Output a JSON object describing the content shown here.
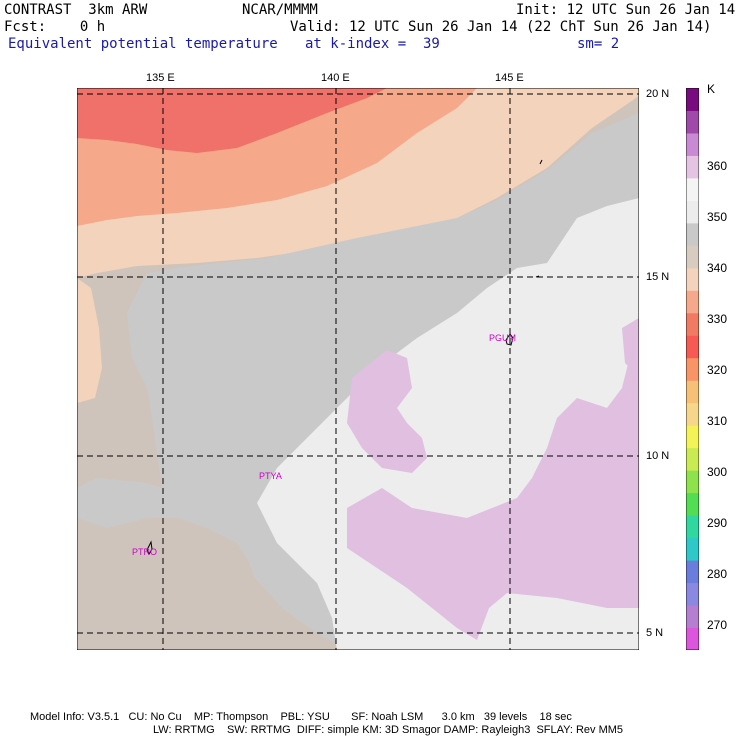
{
  "header": {
    "model": "CONTRAST  3km ARW",
    "org": "NCAR/MMMM",
    "init": "Init: 12 UTC Sun 26 Jan 14",
    "fcst": "Fcst:    0 h",
    "valid": "Valid: 12 UTC Sun 26 Jan 14 (22 ChT Sun 26 Jan 14)",
    "field": "Equivalent potential temperature",
    "level": "at k-index =  39",
    "smooth": "sm= 2"
  },
  "axes": {
    "lon_labels": [
      "135 E",
      "140 E",
      "145 E"
    ],
    "lat_labels": [
      "20 N",
      "15 N",
      "10 N",
      "5 N"
    ]
  },
  "colorbar": {
    "unit": "K",
    "ticks": [
      "360",
      "350",
      "340",
      "330",
      "320",
      "310",
      "300",
      "290",
      "280",
      "270"
    ],
    "colors": [
      "#dd55dd",
      "#b47fd0",
      "#8a88e0",
      "#6a7ddc",
      "#2ec8c8",
      "#30d8a0",
      "#52dd52",
      "#8ee24c",
      "#c9ea52",
      "#f3f358",
      "#f6d68a",
      "#f6c076",
      "#f89466",
      "#f65a52",
      "#f07a62",
      "#f6a88a",
      "#f3d3bb",
      "#d8cbc0",
      "#c9c9c9",
      "#ececec",
      "#f4f4f4",
      "#e5c3e3",
      "#c88ad3",
      "#9f4aa8",
      "#7a0b7f"
    ]
  },
  "stations": [
    "PGUM",
    "PTYA",
    "PTRO"
  ],
  "footer": {
    "line1": "Model Info: V3.5.1   CU: No Cu    MP: Thompson    PBL: YSU       SF: Noah LSM      3.0 km   39 levels    18 sec",
    "line2": "LW: RRTMG    SW: RRTMG  DIFF: simple KM: 3D Smagor DAMP: Rayleigh3  SFLAY: Rev MM5"
  }
}
